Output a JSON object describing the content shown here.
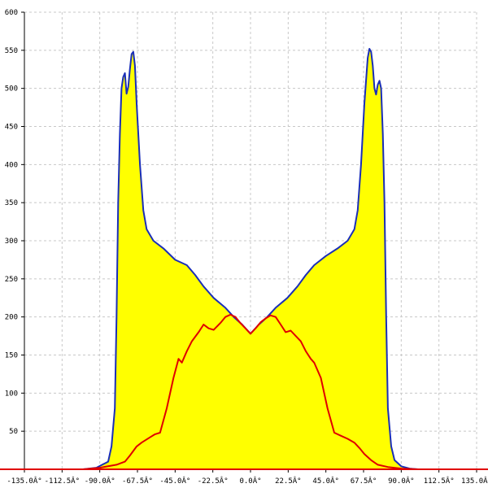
{
  "chart_data": {
    "type": "area",
    "xlim": [
      -135,
      135
    ],
    "ylim": [
      0,
      600
    ],
    "grid": true,
    "x_ticks": [
      -135,
      -112.5,
      -90,
      -67.5,
      -45,
      -22.5,
      0,
      22.5,
      45,
      67.5,
      90,
      112.5,
      135
    ],
    "x_tick_labels": [
      "-135.0Â°",
      "-112.5Â°",
      "-90.0Â°",
      "-67.5Â°",
      "-45.0Â°",
      "-22.5Â°",
      "0.0Â°",
      "22.5Â°",
      "45.0Â°",
      "67.5Â°",
      "90.0Â°",
      "112.5Â°",
      "135.0Â°"
    ],
    "y_ticks": [
      50,
      100,
      150,
      200,
      250,
      300,
      350,
      400,
      450,
      500,
      550,
      600
    ],
    "y_tick_labels": [
      "50",
      "100",
      "150",
      "200",
      "250",
      "300",
      "350",
      "400",
      "450",
      "500",
      "550",
      "600"
    ],
    "series": [
      {
        "color": "#1a2eb8",
        "fill": "#ffff00",
        "points": [
          [
            -100,
            0
          ],
          [
            -92,
            2
          ],
          [
            -85,
            10
          ],
          [
            -83,
            30
          ],
          [
            -81,
            80
          ],
          [
            -80,
            200
          ],
          [
            -79,
            350
          ],
          [
            -78,
            440
          ],
          [
            -77,
            500
          ],
          [
            -76,
            515
          ],
          [
            -75,
            520
          ],
          [
            -74,
            493
          ],
          [
            -73,
            502
          ],
          [
            -72,
            525
          ],
          [
            -71,
            545
          ],
          [
            -70,
            548
          ],
          [
            -69,
            530
          ],
          [
            -68,
            480
          ],
          [
            -66,
            400
          ],
          [
            -64,
            340
          ],
          [
            -62,
            315
          ],
          [
            -58,
            300
          ],
          [
            -52,
            290
          ],
          [
            -45,
            275
          ],
          [
            -38,
            268
          ],
          [
            -33,
            255
          ],
          [
            -28,
            240
          ],
          [
            -22,
            225
          ],
          [
            -15,
            212
          ],
          [
            -10,
            200
          ],
          [
            -5,
            190
          ],
          [
            0,
            178
          ],
          [
            5,
            190
          ],
          [
            10,
            200
          ],
          [
            15,
            212
          ],
          [
            22,
            225
          ],
          [
            28,
            240
          ],
          [
            33,
            255
          ],
          [
            38,
            268
          ],
          [
            45,
            280
          ],
          [
            52,
            290
          ],
          [
            58,
            300
          ],
          [
            62,
            315
          ],
          [
            64,
            340
          ],
          [
            66,
            400
          ],
          [
            68,
            480
          ],
          [
            70,
            540
          ],
          [
            71,
            552
          ],
          [
            72,
            548
          ],
          [
            73,
            530
          ],
          [
            74,
            500
          ],
          [
            75,
            492
          ],
          [
            76,
            505
          ],
          [
            77,
            510
          ],
          [
            78,
            500
          ],
          [
            79,
            440
          ],
          [
            80,
            350
          ],
          [
            81,
            200
          ],
          [
            82,
            80
          ],
          [
            84,
            30
          ],
          [
            86,
            12
          ],
          [
            90,
            4
          ],
          [
            95,
            1
          ],
          [
            100,
            0
          ]
        ]
      },
      {
        "color": "#e00000",
        "points": [
          [
            -135,
            0
          ],
          [
            -100,
            0
          ],
          [
            -90,
            2
          ],
          [
            -80,
            6
          ],
          [
            -75,
            10
          ],
          [
            -72,
            18
          ],
          [
            -68,
            30
          ],
          [
            -65,
            35
          ],
          [
            -60,
            42
          ],
          [
            -57,
            46
          ],
          [
            -54,
            48
          ],
          [
            -50,
            80
          ],
          [
            -46,
            120
          ],
          [
            -43,
            145
          ],
          [
            -41,
            140
          ],
          [
            -38,
            155
          ],
          [
            -35,
            168
          ],
          [
            -31,
            180
          ],
          [
            -28,
            190
          ],
          [
            -25,
            185
          ],
          [
            -22,
            183
          ],
          [
            -18,
            192
          ],
          [
            -15,
            200
          ],
          [
            -12,
            203
          ],
          [
            -9,
            200
          ],
          [
            -6,
            192
          ],
          [
            -3,
            185
          ],
          [
            0,
            178
          ],
          [
            3,
            185
          ],
          [
            6,
            193
          ],
          [
            9,
            198
          ],
          [
            12,
            202
          ],
          [
            15,
            200
          ],
          [
            18,
            190
          ],
          [
            21,
            180
          ],
          [
            24,
            182
          ],
          [
            27,
            175
          ],
          [
            30,
            168
          ],
          [
            33,
            155
          ],
          [
            36,
            145
          ],
          [
            38,
            140
          ],
          [
            42,
            120
          ],
          [
            46,
            80
          ],
          [
            50,
            48
          ],
          [
            54,
            44
          ],
          [
            58,
            40
          ],
          [
            62,
            35
          ],
          [
            65,
            28
          ],
          [
            68,
            20
          ],
          [
            72,
            12
          ],
          [
            76,
            6
          ],
          [
            82,
            3
          ],
          [
            90,
            1
          ],
          [
            100,
            0
          ],
          [
            135,
            0
          ]
        ]
      }
    ]
  }
}
